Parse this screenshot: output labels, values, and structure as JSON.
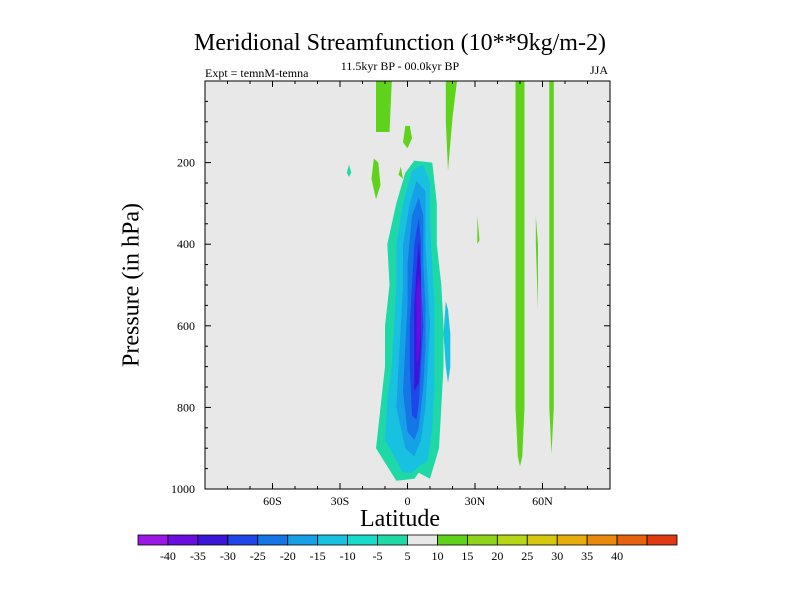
{
  "chart_data": {
    "type": "heatmap",
    "title": "Meridional Streamfunction (10**9kg/m-2)",
    "subtitle": "11.5kyr BP - 00.0kyr BP",
    "left_annotation": "Expt = temnM-temna",
    "right_annotation": "JJA",
    "xlabel": "Latitude",
    "ylabel": "Pressure (in hPa)",
    "x_range": [
      -90,
      90
    ],
    "y_range": [
      0,
      1000
    ],
    "y_inverted": true,
    "x_ticks": [
      {
        "value": -60,
        "label": "60S"
      },
      {
        "value": -30,
        "label": "30S"
      },
      {
        "value": 0,
        "label": "0"
      },
      {
        "value": 30,
        "label": "30N"
      },
      {
        "value": 60,
        "label": "60N"
      }
    ],
    "y_ticks": [
      {
        "value": 200,
        "label": "200"
      },
      {
        "value": 400,
        "label": "400"
      },
      {
        "value": 600,
        "label": "600"
      },
      {
        "value": 800,
        "label": "800"
      },
      {
        "value": 1000,
        "label": "1000"
      }
    ],
    "colorbar": {
      "levels": [
        -40,
        -35,
        -30,
        -25,
        -20,
        -15,
        -10,
        -5,
        5,
        10,
        15,
        20,
        25,
        30,
        35,
        40
      ],
      "labels": [
        "-40",
        "-35",
        "-30",
        "-25",
        "-20",
        "-15",
        "-10",
        "-5",
        "5",
        "10",
        "15",
        "20",
        "25",
        "30",
        "35",
        "40"
      ],
      "colors": [
        "#9b17e3",
        "#6a0ee0",
        "#3b16d8",
        "#1f46e8",
        "#1576e6",
        "#16a0e8",
        "#19c1e0",
        "#18dcc9",
        "#1ed9a6",
        "#e8e8e8",
        "#5fd21c",
        "#8ed41a",
        "#b6d715",
        "#d5c80f",
        "#e8ad0c",
        "#ea8a0c",
        "#e6620f",
        "#e13a12"
      ]
    },
    "regions": [
      {
        "value": -7,
        "color": "#1ed9a6",
        "points": [
          [
            -5,
            980
          ],
          [
            -14,
            900
          ],
          [
            -12,
            800
          ],
          [
            -10,
            700
          ],
          [
            -10,
            600
          ],
          [
            -8,
            500
          ],
          [
            -9,
            400
          ],
          [
            -5,
            300
          ],
          [
            -1,
            225
          ],
          [
            3,
            195
          ],
          [
            11,
            200
          ],
          [
            13,
            300
          ],
          [
            13,
            400
          ],
          [
            15,
            500
          ],
          [
            16,
            600
          ],
          [
            16,
            700
          ],
          [
            15,
            800
          ],
          [
            14,
            900
          ],
          [
            10,
            975
          ],
          [
            5,
            960
          ],
          [
            3,
            975
          ]
        ]
      },
      {
        "value": -12,
        "color": "#19c1e0",
        "points": [
          [
            -2,
            960
          ],
          [
            -10,
            880
          ],
          [
            -9,
            780
          ],
          [
            -7,
            700
          ],
          [
            -6,
            600
          ],
          [
            -5,
            500
          ],
          [
            -5,
            400
          ],
          [
            -2,
            300
          ],
          [
            2,
            220
          ],
          [
            7,
            205
          ],
          [
            10,
            250
          ],
          [
            10,
            350
          ],
          [
            11,
            450
          ],
          [
            12,
            550
          ],
          [
            12,
            650
          ],
          [
            12,
            750
          ],
          [
            11,
            850
          ],
          [
            9,
            930
          ],
          [
            5,
            945
          ],
          [
            2,
            960
          ]
        ]
      },
      {
        "value": -17,
        "color": "#16a0e8",
        "points": [
          [
            -1,
            900
          ],
          [
            -5,
            800
          ],
          [
            -4,
            700
          ],
          [
            -3,
            600
          ],
          [
            -2,
            500
          ],
          [
            -2,
            400
          ],
          [
            1,
            300
          ],
          [
            4,
            245
          ],
          [
            8,
            270
          ],
          [
            8,
            400
          ],
          [
            9,
            500
          ],
          [
            10,
            600
          ],
          [
            9,
            700
          ],
          [
            8,
            800
          ],
          [
            6,
            880
          ],
          [
            3,
            920
          ]
        ]
      },
      {
        "value": -22,
        "color": "#1576e6",
        "points": [
          [
            0,
            860
          ],
          [
            -2,
            760
          ],
          [
            -1,
            650
          ],
          [
            0,
            550
          ],
          [
            0,
            450
          ],
          [
            2,
            330
          ],
          [
            5,
            285
          ],
          [
            7,
            330
          ],
          [
            7,
            450
          ],
          [
            8,
            550
          ],
          [
            8,
            650
          ],
          [
            7,
            750
          ],
          [
            5,
            850
          ],
          [
            3,
            880
          ]
        ]
      },
      {
        "value": -27,
        "color": "#1f46e8",
        "points": [
          [
            2,
            820
          ],
          [
            1,
            700
          ],
          [
            1,
            600
          ],
          [
            2,
            500
          ],
          [
            3,
            400
          ],
          [
            5,
            335
          ],
          [
            6,
            400
          ],
          [
            6,
            500
          ],
          [
            7,
            600
          ],
          [
            6,
            700
          ],
          [
            5,
            790
          ],
          [
            4,
            830
          ]
        ]
      },
      {
        "value": -32,
        "color": "#3b16d8",
        "points": [
          [
            3,
            760
          ],
          [
            3,
            650
          ],
          [
            3,
            550
          ],
          [
            4,
            460
          ],
          [
            5,
            390
          ],
          [
            6,
            470
          ],
          [
            6,
            560
          ],
          [
            6,
            650
          ],
          [
            5,
            740
          ]
        ]
      },
      {
        "value": -37,
        "color": "#6a0ee0",
        "points": [
          [
            4,
            690
          ],
          [
            4,
            600
          ],
          [
            4,
            520
          ],
          [
            5,
            470
          ],
          [
            6,
            520
          ],
          [
            6,
            600
          ],
          [
            5,
            680
          ]
        ]
      },
      {
        "value": -12,
        "color": "#19c1e0",
        "points": [
          [
            17,
            540
          ],
          [
            16,
            620
          ],
          [
            17,
            700
          ],
          [
            18,
            740
          ],
          [
            19,
            700
          ],
          [
            19,
            620
          ],
          [
            18,
            560
          ]
        ]
      },
      {
        "value": -7,
        "color": "#1ed9a6",
        "points": [
          [
            -26,
            205
          ],
          [
            -27,
            225
          ],
          [
            -26,
            235
          ],
          [
            -25,
            225
          ]
        ]
      },
      {
        "value": 7,
        "color": "#5fd21c",
        "points": [
          [
            -14,
            0
          ],
          [
            -14,
            125
          ],
          [
            -8,
            125
          ],
          [
            -7,
            0
          ]
        ]
      },
      {
        "value": 7,
        "color": "#5fd21c",
        "points": [
          [
            -1,
            110
          ],
          [
            -2,
            150
          ],
          [
            0,
            165
          ],
          [
            2,
            140
          ],
          [
            1,
            110
          ]
        ]
      },
      {
        "value": 7,
        "color": "#5fd21c",
        "points": [
          [
            -15,
            190
          ],
          [
            -16,
            240
          ],
          [
            -14,
            290
          ],
          [
            -12,
            255
          ],
          [
            -13,
            200
          ]
        ]
      },
      {
        "value": 7,
        "color": "#5fd21c",
        "points": [
          [
            -3,
            210
          ],
          [
            -4,
            230
          ],
          [
            -2,
            240
          ]
        ]
      },
      {
        "value": 7,
        "color": "#5fd21c",
        "points": [
          [
            17,
            0
          ],
          [
            17,
            100
          ],
          [
            18,
            220
          ],
          [
            20,
            90
          ],
          [
            22,
            0
          ]
        ]
      },
      {
        "value": 7,
        "color": "#5fd21c",
        "points": [
          [
            31,
            330
          ],
          [
            31,
            400
          ],
          [
            32,
            390
          ]
        ]
      },
      {
        "value": 7,
        "color": "#5fd21c",
        "points": [
          [
            48,
            0
          ],
          [
            48,
            800
          ],
          [
            49,
            920
          ],
          [
            50,
            945
          ],
          [
            51,
            920
          ],
          [
            52,
            800
          ],
          [
            52,
            0
          ]
        ]
      },
      {
        "value": 7,
        "color": "#5fd21c",
        "points": [
          [
            57,
            330
          ],
          [
            57,
            400
          ],
          [
            58,
            560
          ],
          [
            58,
            400
          ]
        ]
      },
      {
        "value": 7,
        "color": "#5fd21c",
        "points": [
          [
            63,
            0
          ],
          [
            63,
            800
          ],
          [
            64,
            915
          ],
          [
            65,
            800
          ],
          [
            65,
            0
          ]
        ]
      }
    ]
  }
}
